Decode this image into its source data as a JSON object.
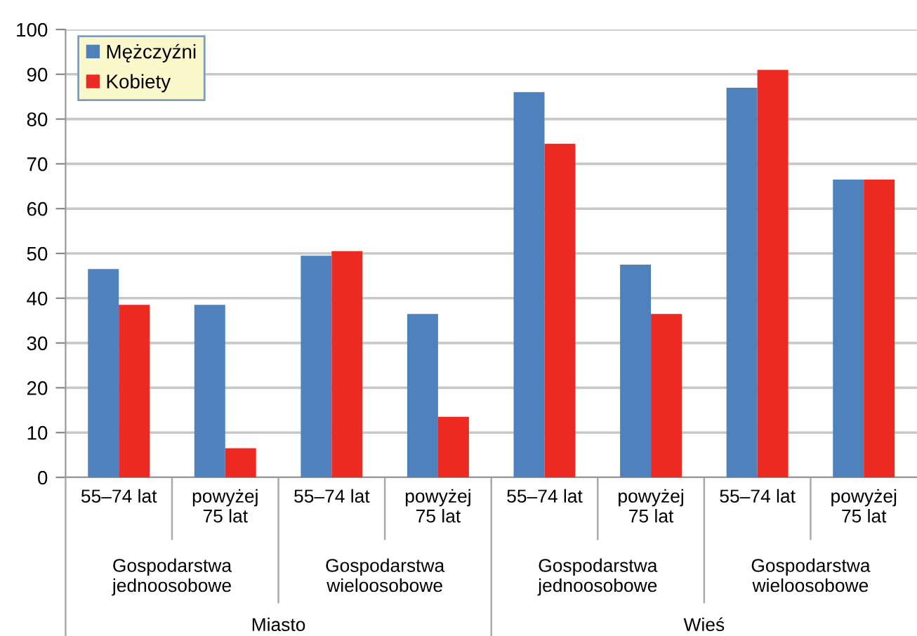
{
  "chart_data": {
    "type": "bar",
    "categories": [
      "55–74 lat",
      "powyżej\n75 lat",
      "55–74 lat",
      "powyżej\n75 lat",
      "55–74 lat",
      "powyżej\n75 lat",
      "55–74 lat",
      "powyżej\n75 lat"
    ],
    "series": [
      {
        "name": "Mężczyźni",
        "color": "#4f81bd",
        "values": [
          46.5,
          38.5,
          49.5,
          36.5,
          86,
          47.5,
          87,
          66.5
        ]
      },
      {
        "name": "Kobiety",
        "color": "#ec2a22",
        "values": [
          38.5,
          6.5,
          50.5,
          13.5,
          74.5,
          36.5,
          91,
          66.5
        ]
      }
    ],
    "ylim": [
      0,
      100
    ],
    "yticks": [
      0,
      10,
      20,
      30,
      40,
      50,
      60,
      70,
      80,
      90,
      100
    ],
    "grid": "y",
    "legend": "top left",
    "annotations": [
      "Gospodarstwa\njednoosobowe",
      "Gospodarstwa\nwieloosobowe",
      "Gospodarstwa\njednoosobowe",
      "Gospodarstwa\nwieloosobowe",
      "Miasto",
      "Wieś"
    ]
  }
}
